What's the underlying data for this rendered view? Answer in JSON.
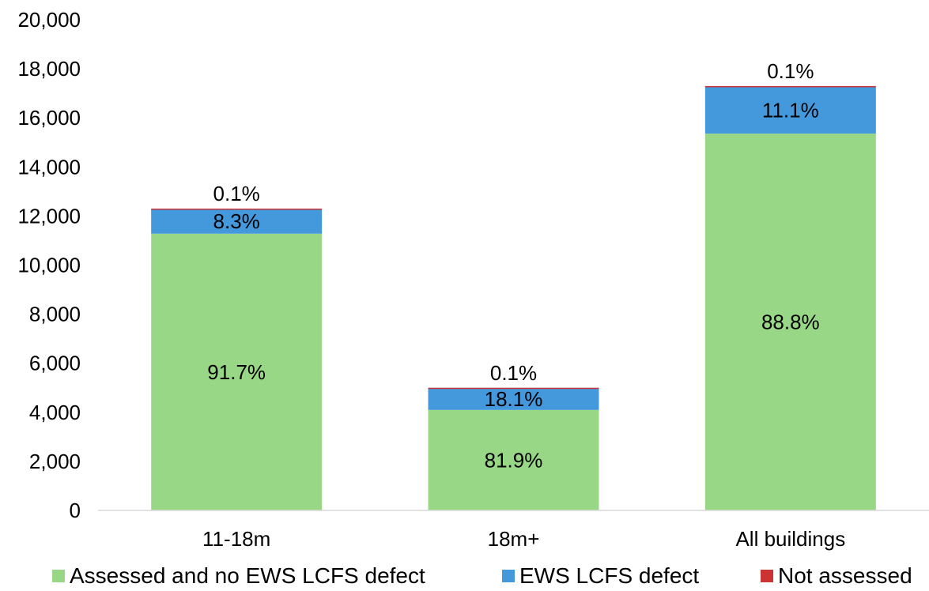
{
  "chart_data": {
    "type": "bar",
    "stacked": true,
    "categories": [
      "11-18m",
      "18m+",
      "All buildings"
    ],
    "totals": [
      12300,
      5000,
      17300
    ],
    "series": [
      {
        "name": "Assessed and no EWS LCFS defect",
        "color": "#97d785",
        "values": [
          11280,
          4095,
          15360
        ],
        "labels": [
          "91.7%",
          "81.9%",
          "88.8%"
        ]
      },
      {
        "name": "EWS LCFS defect",
        "color": "#4499dd",
        "values": [
          1010,
          900,
          1920
        ],
        "labels": [
          "8.3%",
          "18.1%",
          "11.1%"
        ]
      },
      {
        "name": "Not assessed",
        "color": "#cc3333",
        "values": [
          12,
          5,
          17
        ],
        "labels": [
          "0.1%",
          "0.1%",
          "0.1%"
        ]
      }
    ],
    "yticks": [
      "0",
      "2,000",
      "4,000",
      "6,000",
      "8,000",
      "10,000",
      "12,000",
      "14,000",
      "16,000",
      "18,000",
      "20,000"
    ],
    "ylim": [
      0,
      20000
    ],
    "grid": false,
    "legend_position": "bottom"
  }
}
